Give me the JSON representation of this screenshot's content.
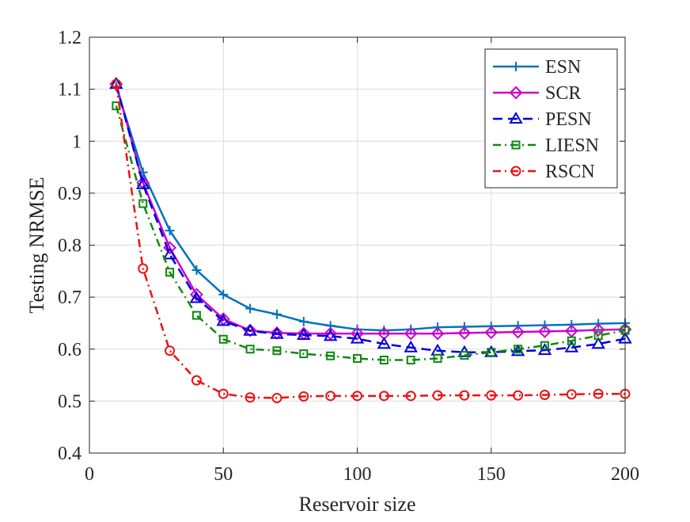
{
  "chart_data": {
    "type": "line",
    "title": "",
    "xlabel": "Reservoir size",
    "ylabel": "Testing NRMSE",
    "xlim": [
      0,
      200
    ],
    "ylim": [
      0.4,
      1.2
    ],
    "grid": true,
    "legend_position": "top-right",
    "x": [
      10,
      20,
      30,
      40,
      50,
      60,
      70,
      80,
      90,
      100,
      110,
      120,
      130,
      140,
      150,
      160,
      170,
      180,
      190,
      200
    ],
    "xticks": [
      0,
      50,
      100,
      150,
      200
    ],
    "yticks": [
      0.4,
      0.5,
      0.6,
      0.7,
      0.8,
      0.9,
      1,
      1.1,
      1.2
    ],
    "xtick_labels": [
      "0",
      "50",
      "100",
      "150",
      "200"
    ],
    "ytick_labels": [
      "0.4",
      "0.5",
      "0.6",
      "0.7",
      "0.8",
      "0.9",
      "1",
      "1.1",
      "1.2"
    ],
    "series": [
      {
        "name": "ESN",
        "color": "#0072BD",
        "dash": "solid",
        "marker": "plus",
        "values": [
          1.105,
          0.94,
          0.828,
          0.752,
          0.705,
          0.678,
          0.667,
          0.653,
          0.645,
          0.638,
          0.636,
          0.638,
          0.642,
          0.643,
          0.644,
          0.645,
          0.646,
          0.647,
          0.649,
          0.65
        ]
      },
      {
        "name": "SCR",
        "color": "#CC00CC",
        "dash": "solid",
        "marker": "diamond",
        "values": [
          1.11,
          0.92,
          0.795,
          0.705,
          0.658,
          0.636,
          0.631,
          0.63,
          0.63,
          0.63,
          0.63,
          0.63,
          0.63,
          0.631,
          0.632,
          0.633,
          0.634,
          0.635,
          0.637,
          0.638
        ]
      },
      {
        "name": "PESN",
        "color": "#0000DD",
        "dash": "dashed",
        "marker": "triangle",
        "values": [
          1.11,
          0.917,
          0.782,
          0.698,
          0.654,
          0.635,
          0.629,
          0.627,
          0.625,
          0.62,
          0.61,
          0.603,
          0.597,
          0.594,
          0.594,
          0.596,
          0.598,
          0.603,
          0.61,
          0.62
        ]
      },
      {
        "name": "LIESN",
        "color": "#118811",
        "dash": "dashdot",
        "marker": "square",
        "values": [
          1.068,
          0.88,
          0.748,
          0.665,
          0.619,
          0.6,
          0.597,
          0.591,
          0.587,
          0.582,
          0.579,
          0.579,
          0.582,
          0.588,
          0.594,
          0.6,
          0.607,
          0.616,
          0.626,
          0.636
        ]
      },
      {
        "name": "RSCN",
        "color": "#EE1111",
        "dash": "dashdot",
        "marker": "circle",
        "values": [
          1.11,
          0.755,
          0.597,
          0.54,
          0.514,
          0.507,
          0.506,
          0.509,
          0.51,
          0.51,
          0.51,
          0.51,
          0.511,
          0.511,
          0.511,
          0.511,
          0.512,
          0.513,
          0.514,
          0.514
        ]
      }
    ]
  }
}
